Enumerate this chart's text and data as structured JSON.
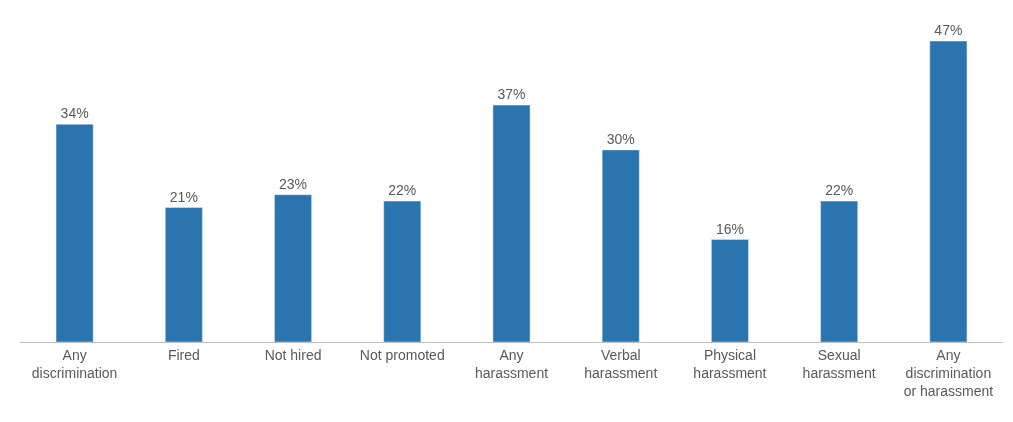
{
  "chart_data": {
    "type": "bar",
    "categories": [
      "Any discrimination",
      "Fired",
      "Not hired",
      "Not promoted",
      "Any harassment",
      "Verbal harassment",
      "Physical harassment",
      "Sexual harassment",
      "Any discrimination or harassment"
    ],
    "values": [
      34,
      21,
      23,
      22,
      37,
      30,
      16,
      22,
      47
    ],
    "value_labels": [
      "34%",
      "21%",
      "23%",
      "22%",
      "37%",
      "30%",
      "16%",
      "22%",
      "47%"
    ],
    "color": "#2a74b0"
  }
}
